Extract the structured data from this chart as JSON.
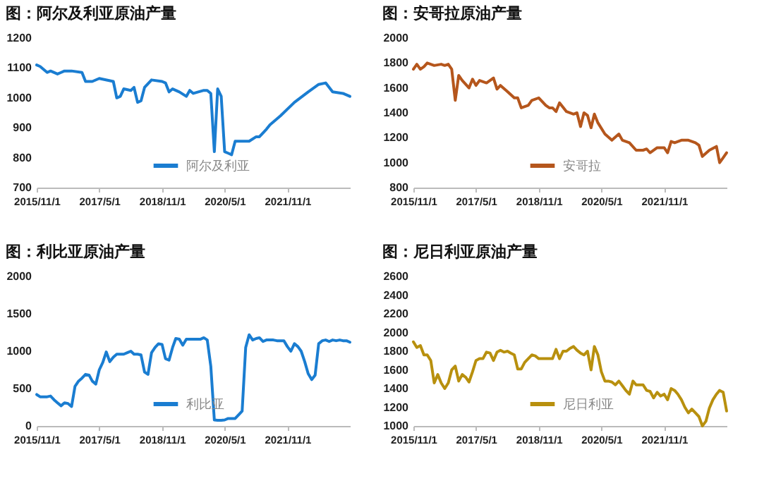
{
  "chart_data": [
    {
      "type": "line",
      "title": "图：阿尔及利亚原油产量",
      "x": [
        "2015-11",
        "2015-12",
        "2016-02",
        "2016-03",
        "2016-05",
        "2016-06",
        "2016-07",
        "2016-09",
        "2016-12",
        "2017-01",
        "2017-03",
        "2017-05",
        "2017-09",
        "2017-10",
        "2017-11",
        "2017-12",
        "2018-02",
        "2018-03",
        "2018-04",
        "2018-05",
        "2018-06",
        "2018-08",
        "2018-11",
        "2018-12",
        "2019-01",
        "2019-02",
        "2019-04",
        "2019-06",
        "2019-07",
        "2019-08",
        "2019-11",
        "2019-12",
        "2020-01",
        "2020-02",
        "2020-03",
        "2020-04",
        "2020-05",
        "2020-06",
        "2020-07",
        "2020-08",
        "2020-12",
        "2021-02",
        "2021-03",
        "2021-05",
        "2021-06",
        "2021-09",
        "2022-01",
        "2022-05",
        "2022-08",
        "2022-10",
        "2022-12",
        "2023-03",
        "2023-05"
      ],
      "series": [
        {
          "name": "阿尔及利亚",
          "color": "#1a7dd1",
          "values": [
            1110,
            1105,
            1085,
            1090,
            1080,
            1085,
            1090,
            1090,
            1085,
            1055,
            1055,
            1065,
            1055,
            1000,
            1005,
            1030,
            1025,
            1035,
            985,
            990,
            1035,
            1060,
            1055,
            1050,
            1020,
            1030,
            1020,
            1005,
            1025,
            1015,
            1025,
            1025,
            1015,
            820,
            1030,
            1005,
            820,
            815,
            810,
            855,
            855,
            870,
            870,
            895,
            910,
            940,
            985,
            1020,
            1045,
            1050,
            1020,
            1015,
            1005
          ]
        }
      ],
      "xlim": [
        "2015-11",
        "2023-05"
      ],
      "xticks": [
        {
          "value": "2015-11",
          "label": "2015/11/1"
        },
        {
          "value": "2017-05",
          "label": "2017/5/1"
        },
        {
          "value": "2018-11",
          "label": "2018/11/1"
        },
        {
          "value": "2020-05",
          "label": "2020/5/1"
        },
        {
          "value": "2021-11",
          "label": "2021/11/1"
        }
      ],
      "ylim": [
        700,
        1200
      ],
      "yticks": [
        700,
        800,
        900,
        1000,
        1100,
        1200
      ],
      "legend": "bottom"
    },
    {
      "type": "line",
      "title": "图：安哥拉原油产量",
      "x": [
        "2015-11",
        "2015-12",
        "2016-01",
        "2016-02",
        "2016-03",
        "2016-05",
        "2016-07",
        "2016-08",
        "2016-09",
        "2016-10",
        "2016-11",
        "2016-12",
        "2017-01",
        "2017-03",
        "2017-04",
        "2017-05",
        "2017-06",
        "2017-08",
        "2017-10",
        "2017-11",
        "2017-12",
        "2018-02",
        "2018-04",
        "2018-05",
        "2018-06",
        "2018-08",
        "2018-09",
        "2018-11",
        "2019-01",
        "2019-02",
        "2019-03",
        "2019-04",
        "2019-05",
        "2019-07",
        "2019-09",
        "2019-10",
        "2019-11",
        "2019-12",
        "2020-01",
        "2020-02",
        "2020-03",
        "2020-04",
        "2020-06",
        "2020-08",
        "2020-10",
        "2020-11",
        "2021-01",
        "2021-03",
        "2021-05",
        "2021-06",
        "2021-07",
        "2021-09",
        "2021-11",
        "2021-12",
        "2022-01",
        "2022-02",
        "2022-04",
        "2022-06",
        "2022-08",
        "2022-09",
        "2022-10",
        "2022-12",
        "2023-02",
        "2023-03",
        "2023-04",
        "2023-05"
      ],
      "series": [
        {
          "name": "安哥拉",
          "color": "#b5561c",
          "values": [
            1750,
            1790,
            1750,
            1770,
            1800,
            1780,
            1790,
            1780,
            1790,
            1750,
            1500,
            1700,
            1660,
            1600,
            1670,
            1620,
            1660,
            1640,
            1680,
            1590,
            1620,
            1570,
            1520,
            1520,
            1440,
            1460,
            1500,
            1520,
            1460,
            1440,
            1440,
            1410,
            1480,
            1410,
            1390,
            1400,
            1290,
            1400,
            1380,
            1280,
            1390,
            1320,
            1230,
            1180,
            1230,
            1180,
            1160,
            1100,
            1100,
            1110,
            1080,
            1120,
            1120,
            1080,
            1170,
            1160,
            1180,
            1180,
            1160,
            1140,
            1050,
            1100,
            1130,
            1000,
            1040,
            1080
          ]
        }
      ],
      "xlim": [
        "2015-11",
        "2023-05"
      ],
      "xticks": [
        {
          "value": "2015-11",
          "label": "2015/11/1"
        },
        {
          "value": "2017-05",
          "label": "2017/5/1"
        },
        {
          "value": "2018-11",
          "label": "2018/11/1"
        },
        {
          "value": "2020-05",
          "label": "2020/5/1"
        },
        {
          "value": "2021-11",
          "label": "2021/11/1"
        }
      ],
      "ylim": [
        800,
        2000
      ],
      "yticks": [
        800,
        1000,
        1200,
        1400,
        1600,
        1800,
        2000
      ],
      "legend": "bottom"
    },
    {
      "type": "line",
      "title": "图：利比亚原油产量",
      "x": [
        "2015-11",
        "2015-12",
        "2016-01",
        "2016-02",
        "2016-03",
        "2016-04",
        "2016-05",
        "2016-06",
        "2016-07",
        "2016-08",
        "2016-09",
        "2016-10",
        "2016-11",
        "2016-12",
        "2017-01",
        "2017-02",
        "2017-03",
        "2017-04",
        "2017-05",
        "2017-06",
        "2017-07",
        "2017-08",
        "2017-09",
        "2017-10",
        "2017-11",
        "2017-12",
        "2018-01",
        "2018-02",
        "2018-03",
        "2018-04",
        "2018-05",
        "2018-06",
        "2018-07",
        "2018-08",
        "2018-09",
        "2018-10",
        "2018-11",
        "2018-12",
        "2019-01",
        "2019-02",
        "2019-03",
        "2019-04",
        "2019-05",
        "2019-06",
        "2019-07",
        "2019-08",
        "2019-09",
        "2019-10",
        "2019-11",
        "2019-12",
        "2020-01",
        "2020-02",
        "2020-03",
        "2020-04",
        "2020-05",
        "2020-06",
        "2020-07",
        "2020-08",
        "2020-09",
        "2020-10",
        "2020-11",
        "2020-12",
        "2021-01",
        "2021-02",
        "2021-03",
        "2021-04",
        "2021-05",
        "2021-06",
        "2021-07",
        "2021-08",
        "2021-09",
        "2021-10",
        "2021-11",
        "2021-12",
        "2022-01",
        "2022-02",
        "2022-03",
        "2022-04",
        "2022-05",
        "2022-06",
        "2022-07",
        "2022-08",
        "2022-09",
        "2022-10",
        "2022-11",
        "2022-12",
        "2023-01",
        "2023-02",
        "2023-03",
        "2023-04",
        "2023-05"
      ],
      "series": [
        {
          "name": "利比亚",
          "color": "#1a7dd1",
          "values": [
            420,
            390,
            390,
            390,
            400,
            350,
            310,
            270,
            310,
            300,
            260,
            530,
            600,
            640,
            690,
            680,
            600,
            560,
            750,
            850,
            990,
            860,
            920,
            960,
            960,
            960,
            980,
            1000,
            960,
            960,
            950,
            720,
            690,
            980,
            1050,
            1100,
            1090,
            900,
            880,
            1050,
            1170,
            1160,
            1080,
            1160,
            1160,
            1160,
            1160,
            1160,
            1180,
            1150,
            800,
            80,
            75,
            75,
            80,
            100,
            100,
            100,
            150,
            200,
            1050,
            1220,
            1150,
            1170,
            1180,
            1130,
            1150,
            1150,
            1150,
            1140,
            1140,
            1140,
            1060,
            1000,
            1100,
            1060,
            1000,
            860,
            700,
            620,
            680,
            1100,
            1140,
            1150,
            1130,
            1150,
            1140,
            1150,
            1140,
            1140,
            1120
          ]
        }
      ],
      "xlim": [
        "2015-11",
        "2023-05"
      ],
      "xticks": [
        {
          "value": "2015-11",
          "label": "2015/11/1"
        },
        {
          "value": "2017-05",
          "label": "2017/5/1"
        },
        {
          "value": "2018-11",
          "label": "2018/11/1"
        },
        {
          "value": "2020-05",
          "label": "2020/5/1"
        },
        {
          "value": "2021-11",
          "label": "2021/11/1"
        }
      ],
      "ylim": [
        0,
        2000
      ],
      "yticks": [
        0,
        500,
        1000,
        1500,
        2000
      ],
      "legend": "bottom"
    },
    {
      "type": "line",
      "title": "图：尼日利亚原油产量",
      "x": [
        "2015-11",
        "2015-12",
        "2016-01",
        "2016-02",
        "2016-03",
        "2016-04",
        "2016-05",
        "2016-06",
        "2016-07",
        "2016-08",
        "2016-09",
        "2016-10",
        "2016-11",
        "2016-12",
        "2017-01",
        "2017-02",
        "2017-03",
        "2017-04",
        "2017-05",
        "2017-06",
        "2017-07",
        "2017-08",
        "2017-09",
        "2017-10",
        "2017-11",
        "2017-12",
        "2018-01",
        "2018-02",
        "2018-03",
        "2018-04",
        "2018-05",
        "2018-06",
        "2018-07",
        "2018-08",
        "2018-09",
        "2018-10",
        "2018-11",
        "2018-12",
        "2019-01",
        "2019-02",
        "2019-03",
        "2019-04",
        "2019-05",
        "2019-06",
        "2019-07",
        "2019-08",
        "2019-09",
        "2019-10",
        "2019-11",
        "2019-12",
        "2020-01",
        "2020-02",
        "2020-03",
        "2020-04",
        "2020-05",
        "2020-06",
        "2020-07",
        "2020-08",
        "2020-09",
        "2020-10",
        "2020-11",
        "2020-12",
        "2021-01",
        "2021-02",
        "2021-03",
        "2021-04",
        "2021-05",
        "2021-06",
        "2021-07",
        "2021-08",
        "2021-09",
        "2021-10",
        "2021-11",
        "2021-12",
        "2022-01",
        "2022-02",
        "2022-03",
        "2022-04",
        "2022-05",
        "2022-06",
        "2022-07",
        "2022-08",
        "2022-09",
        "2022-10",
        "2022-11",
        "2022-12",
        "2023-01",
        "2023-02",
        "2023-03",
        "2023-04",
        "2023-05"
      ],
      "series": [
        {
          "name": "尼日利亚",
          "color": "#b8900e",
          "values": [
            1900,
            1840,
            1860,
            1760,
            1760,
            1700,
            1460,
            1550,
            1460,
            1400,
            1460,
            1600,
            1640,
            1480,
            1550,
            1520,
            1470,
            1580,
            1700,
            1720,
            1720,
            1790,
            1780,
            1700,
            1790,
            1810,
            1790,
            1800,
            1780,
            1760,
            1610,
            1610,
            1680,
            1720,
            1760,
            1750,
            1720,
            1720,
            1720,
            1720,
            1720,
            1820,
            1720,
            1800,
            1800,
            1830,
            1850,
            1810,
            1780,
            1760,
            1800,
            1600,
            1850,
            1760,
            1580,
            1480,
            1480,
            1470,
            1440,
            1480,
            1430,
            1380,
            1340,
            1480,
            1440,
            1440,
            1440,
            1380,
            1370,
            1300,
            1360,
            1320,
            1340,
            1280,
            1400,
            1380,
            1340,
            1280,
            1200,
            1140,
            1180,
            1140,
            1100,
            1000,
            1050,
            1190,
            1280,
            1340,
            1380,
            1360,
            1160
          ]
        }
      ],
      "xlim": [
        "2015-11",
        "2023-05"
      ],
      "xticks": [
        {
          "value": "2015-11",
          "label": "2015/11/1"
        },
        {
          "value": "2017-05",
          "label": "2017/5/1"
        },
        {
          "value": "2018-11",
          "label": "2018/11/1"
        },
        {
          "value": "2020-05",
          "label": "2020/5/1"
        },
        {
          "value": "2021-11",
          "label": "2021/11/1"
        }
      ],
      "ylim": [
        1000,
        2600
      ],
      "yticks": [
        1000,
        1200,
        1400,
        1600,
        1800,
        2000,
        2200,
        2400,
        2600
      ],
      "legend": "bottom"
    }
  ]
}
